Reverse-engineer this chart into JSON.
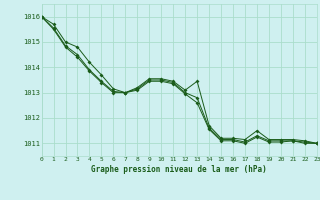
{
  "title": "Graphe pression niveau de la mer (hPa)",
  "bg_color": "#cff0f0",
  "grid_color": "#aaddcc",
  "line_color": "#1a5c1a",
  "x_min": 0,
  "x_max": 23,
  "y_min": 1010.5,
  "y_max": 1016.5,
  "y_ticks": [
    1011,
    1012,
    1013,
    1014,
    1015,
    1016
  ],
  "x_ticks": [
    0,
    1,
    2,
    3,
    4,
    5,
    6,
    7,
    8,
    9,
    10,
    11,
    12,
    13,
    14,
    15,
    16,
    17,
    18,
    19,
    20,
    21,
    22,
    23
  ],
  "series": [
    [
      1016.0,
      1015.7,
      1015.0,
      1014.8,
      1014.2,
      1013.7,
      1013.15,
      1013.0,
      1013.2,
      1013.55,
      1013.55,
      1013.45,
      1013.1,
      1013.45,
      1011.7,
      1011.2,
      1011.2,
      1011.15,
      1011.5,
      1011.15,
      1011.15,
      1011.15,
      1011.1,
      1011.0
    ],
    [
      1016.0,
      1015.55,
      1014.85,
      1014.5,
      1013.9,
      1013.45,
      1013.05,
      1013.0,
      1013.15,
      1013.5,
      1013.5,
      1013.4,
      1013.0,
      1012.8,
      1011.6,
      1011.15,
      1011.15,
      1011.05,
      1011.3,
      1011.1,
      1011.1,
      1011.1,
      1011.05,
      1011.0
    ],
    [
      1016.0,
      1015.5,
      1014.8,
      1014.4,
      1013.85,
      1013.4,
      1013.0,
      1013.0,
      1013.1,
      1013.45,
      1013.45,
      1013.35,
      1012.95,
      1012.6,
      1011.55,
      1011.1,
      1011.1,
      1011.0,
      1011.25,
      1011.05,
      1011.05,
      1011.1,
      1011.0,
      1011.0
    ]
  ]
}
